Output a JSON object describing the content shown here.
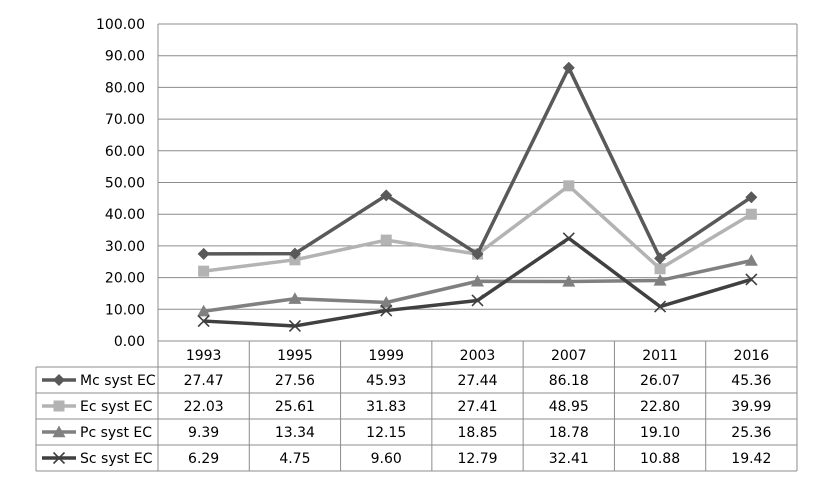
{
  "chart_data": {
    "type": "line",
    "categories": [
      "1993",
      "1995",
      "1999",
      "2003",
      "2007",
      "2011",
      "2016"
    ],
    "ylim": [
      0,
      100
    ],
    "yticks": [
      "0.00",
      "10.00",
      "20.00",
      "30.00",
      "40.00",
      "50.00",
      "60.00",
      "70.00",
      "80.00",
      "90.00",
      "100.00"
    ],
    "grid": true,
    "legend": "data-table-left",
    "series": [
      {
        "name": "Mc syst EC",
        "marker": "diamond",
        "color": "#595959",
        "values": [
          27.47,
          27.56,
          45.93,
          27.44,
          86.18,
          26.07,
          45.36
        ],
        "labels": [
          "27.47",
          "27.56",
          "45.93",
          "27.44",
          "86.18",
          "26.07",
          "45.36"
        ]
      },
      {
        "name": "Ec syst EC",
        "marker": "square",
        "color": "#b3b3b3",
        "values": [
          22.03,
          25.61,
          31.83,
          27.41,
          48.95,
          22.8,
          39.99
        ],
        "labels": [
          "22.03",
          "25.61",
          "31.83",
          "27.41",
          "48.95",
          "22.80",
          "39.99"
        ]
      },
      {
        "name": "Pc syst EC",
        "marker": "triangle",
        "color": "#808080",
        "values": [
          9.39,
          13.34,
          12.15,
          18.85,
          18.78,
          19.1,
          25.36
        ],
        "labels": [
          "9.39",
          "13.34",
          "12.15",
          "18.85",
          "18.78",
          "19.10",
          "25.36"
        ]
      },
      {
        "name": "Sc syst EC",
        "marker": "x",
        "color": "#404040",
        "values": [
          6.29,
          4.75,
          9.6,
          12.79,
          32.41,
          10.88,
          19.42
        ],
        "labels": [
          "6.29",
          "4.75",
          "9.60",
          "12.79",
          "32.41",
          "10.88",
          "19.42"
        ]
      }
    ]
  }
}
